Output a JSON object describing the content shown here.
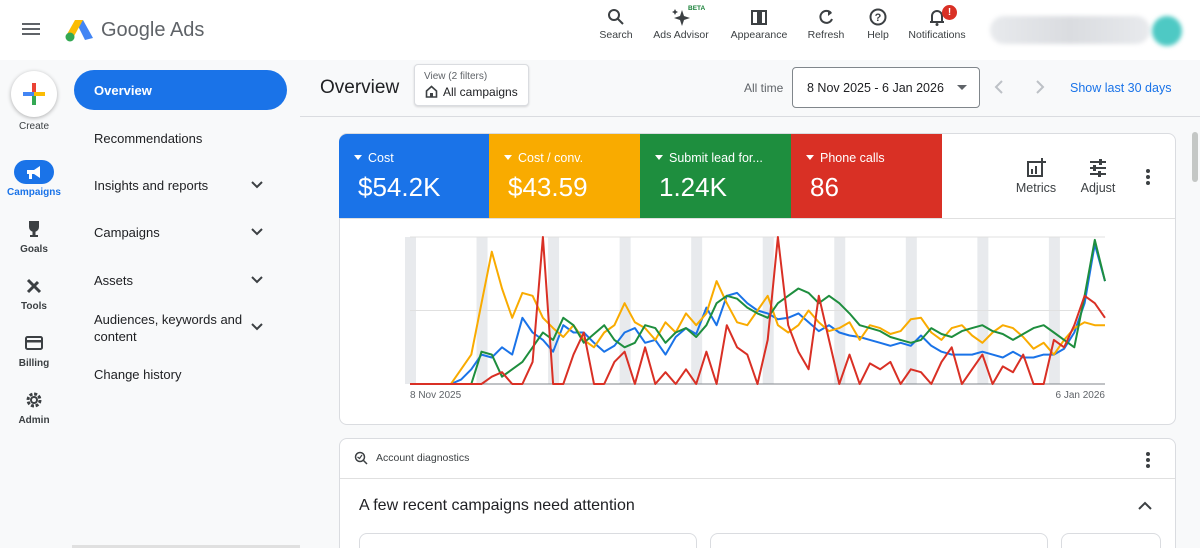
{
  "app": {
    "brand": "Google Ads"
  },
  "toolbar": {
    "search": "Search",
    "advisor": "Ads Advisor",
    "advisor_badge": "BETA",
    "appearance": "Appearance",
    "refresh": "Refresh",
    "help": "Help",
    "notifications": "Notifications",
    "notifications_badge": "!"
  },
  "rail": {
    "create": "Create",
    "items": [
      {
        "label": "Campaigns",
        "icon": "megaphone-icon",
        "active": true
      },
      {
        "label": "Goals",
        "icon": "trophy-icon",
        "active": false
      },
      {
        "label": "Tools",
        "icon": "tools-icon",
        "active": false
      },
      {
        "label": "Billing",
        "icon": "credit-card-icon",
        "active": false
      },
      {
        "label": "Admin",
        "icon": "gear-icon",
        "active": false
      }
    ]
  },
  "sidenav": {
    "items": [
      {
        "label": "Overview",
        "active": true,
        "expandable": false
      },
      {
        "label": "Recommendations",
        "active": false,
        "expandable": false
      },
      {
        "label": "Insights and reports",
        "active": false,
        "expandable": true
      },
      {
        "label": "Campaigns",
        "active": false,
        "expandable": true
      },
      {
        "label": "Assets",
        "active": false,
        "expandable": true
      },
      {
        "label": "Audiences, keywords and content",
        "active": false,
        "expandable": true
      },
      {
        "label": "Change history",
        "active": false,
        "expandable": false
      }
    ]
  },
  "header": {
    "title": "Overview",
    "view_filter": "View (2 filters)",
    "view_value": "All campaigns",
    "date_label": "All time",
    "date_range": "8 Nov 2025 - 6 Jan 2026",
    "show_last": "Show last 30 days"
  },
  "metrics": [
    {
      "label": "Cost",
      "value": "$54.2K",
      "color": "#1a73e8"
    },
    {
      "label": "Cost / conv.",
      "value": "$43.59",
      "color": "#f9ab00"
    },
    {
      "label": "Submit lead for...",
      "value": "1.24K",
      "color": "#1e8e3e"
    },
    {
      "label": "Phone calls",
      "value": "86",
      "color": "#d93025"
    }
  ],
  "card_actions": {
    "metrics": "Metrics",
    "adjust": "Adjust"
  },
  "chart_data": {
    "type": "line",
    "x_start_label": "8 Nov 2025",
    "x_end_label": "6 Jan 2026",
    "grid": true,
    "ylim": [
      0,
      100
    ],
    "series": [
      {
        "name": "Cost",
        "color": "#1a73e8",
        "values": [
          0,
          0,
          0,
          0,
          0,
          3,
          10,
          20,
          18,
          25,
          20,
          45,
          35,
          30,
          22,
          40,
          35,
          35,
          28,
          22,
          26,
          35,
          38,
          28,
          30,
          20,
          32,
          38,
          34,
          52,
          40,
          60,
          62,
          55,
          50,
          48,
          44,
          45,
          48,
          42,
          36,
          40,
          35,
          33,
          32,
          30,
          28,
          26,
          28,
          26,
          33,
          26,
          22,
          20,
          20,
          20,
          22,
          20,
          18,
          22,
          18,
          18,
          20,
          20,
          24,
          35,
          55,
          95,
          70
        ]
      },
      {
        "name": "Cost / conv.",
        "color": "#f9ab00",
        "values": [
          0,
          0,
          0,
          0,
          0,
          10,
          20,
          55,
          90,
          65,
          45,
          62,
          60,
          45,
          38,
          32,
          40,
          30,
          25,
          35,
          40,
          55,
          42,
          38,
          30,
          42,
          35,
          48,
          40,
          48,
          70,
          55,
          42,
          40,
          50,
          60,
          40,
          35,
          40,
          50,
          42,
          36,
          38,
          42,
          30,
          40,
          38,
          34,
          36,
          44,
          45,
          35,
          30,
          38,
          40,
          33,
          28,
          35,
          40,
          38,
          32,
          24,
          28,
          20,
          30,
          38,
          42,
          40,
          40
        ]
      },
      {
        "name": "Submit lead for...",
        "color": "#1e8e3e",
        "values": [
          0,
          0,
          0,
          0,
          0,
          0,
          0,
          22,
          20,
          5,
          10,
          15,
          25,
          35,
          30,
          45,
          40,
          28,
          34,
          40,
          30,
          25,
          28,
          40,
          38,
          28,
          35,
          38,
          32,
          40,
          55,
          60,
          58,
          52,
          48,
          45,
          55,
          60,
          65,
          62,
          55,
          60,
          55,
          48,
          40,
          38,
          36,
          32,
          30,
          28,
          30,
          38,
          34,
          32,
          36,
          38,
          40,
          36,
          34,
          30,
          34,
          38,
          40,
          35,
          30,
          25,
          60,
          98,
          70
        ]
      },
      {
        "name": "Phone calls",
        "color": "#d93025",
        "values": [
          0,
          0,
          0,
          0,
          0,
          0,
          0,
          0,
          5,
          8,
          0,
          0,
          15,
          100,
          0,
          0,
          20,
          35,
          0,
          0,
          15,
          22,
          0,
          25,
          0,
          8,
          0,
          10,
          0,
          22,
          0,
          40,
          25,
          20,
          0,
          30,
          100,
          40,
          22,
          10,
          60,
          30,
          0,
          20,
          0,
          14,
          10,
          15,
          0,
          10,
          8,
          0,
          15,
          25,
          0,
          10,
          20,
          0,
          12,
          8,
          20,
          0,
          0,
          30,
          25,
          40,
          60,
          55,
          45
        ]
      }
    ]
  },
  "diagnostics": {
    "label": "Account diagnostics",
    "headline": "A few recent campaigns need attention"
  }
}
